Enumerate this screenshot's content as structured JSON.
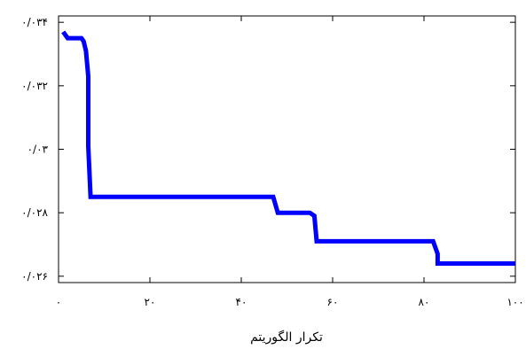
{
  "chart_data": {
    "type": "line",
    "title": "",
    "xlabel": "تکرار الگوریتم",
    "ylabel": "",
    "xlim": [
      0,
      100
    ],
    "ylim": [
      0.0258,
      0.0342
    ],
    "x_ticks": [
      0,
      20,
      40,
      60,
      80,
      100
    ],
    "x_tick_labels": [
      "۰",
      "۲۰",
      "۴۰",
      "۶۰",
      "۸۰",
      "۱۰۰"
    ],
    "y_ticks": [
      0.026,
      0.028,
      0.03,
      0.032,
      0.034
    ],
    "y_tick_labels": [
      "۰/۰۲۶",
      "۰/۰۲۸",
      "۰/۰۳",
      "۰/۰۳۲",
      "۰/۰۳۴"
    ],
    "grid": false,
    "series": [
      {
        "color": "#0000ff",
        "x": [
          1,
          2,
          3,
          4,
          5,
          5.5,
          6,
          6.5,
          6.5,
          7,
          47,
          48,
          55,
          56,
          56.5,
          82,
          83,
          83,
          100
        ],
        "y": [
          0.0337,
          0.0335,
          0.0335,
          0.0335,
          0.0335,
          0.0334,
          0.0331,
          0.0323,
          0.0301,
          0.0285,
          0.0285,
          0.028,
          0.028,
          0.0279,
          0.0271,
          0.0271,
          0.0267,
          0.0264,
          0.0264
        ]
      }
    ]
  }
}
